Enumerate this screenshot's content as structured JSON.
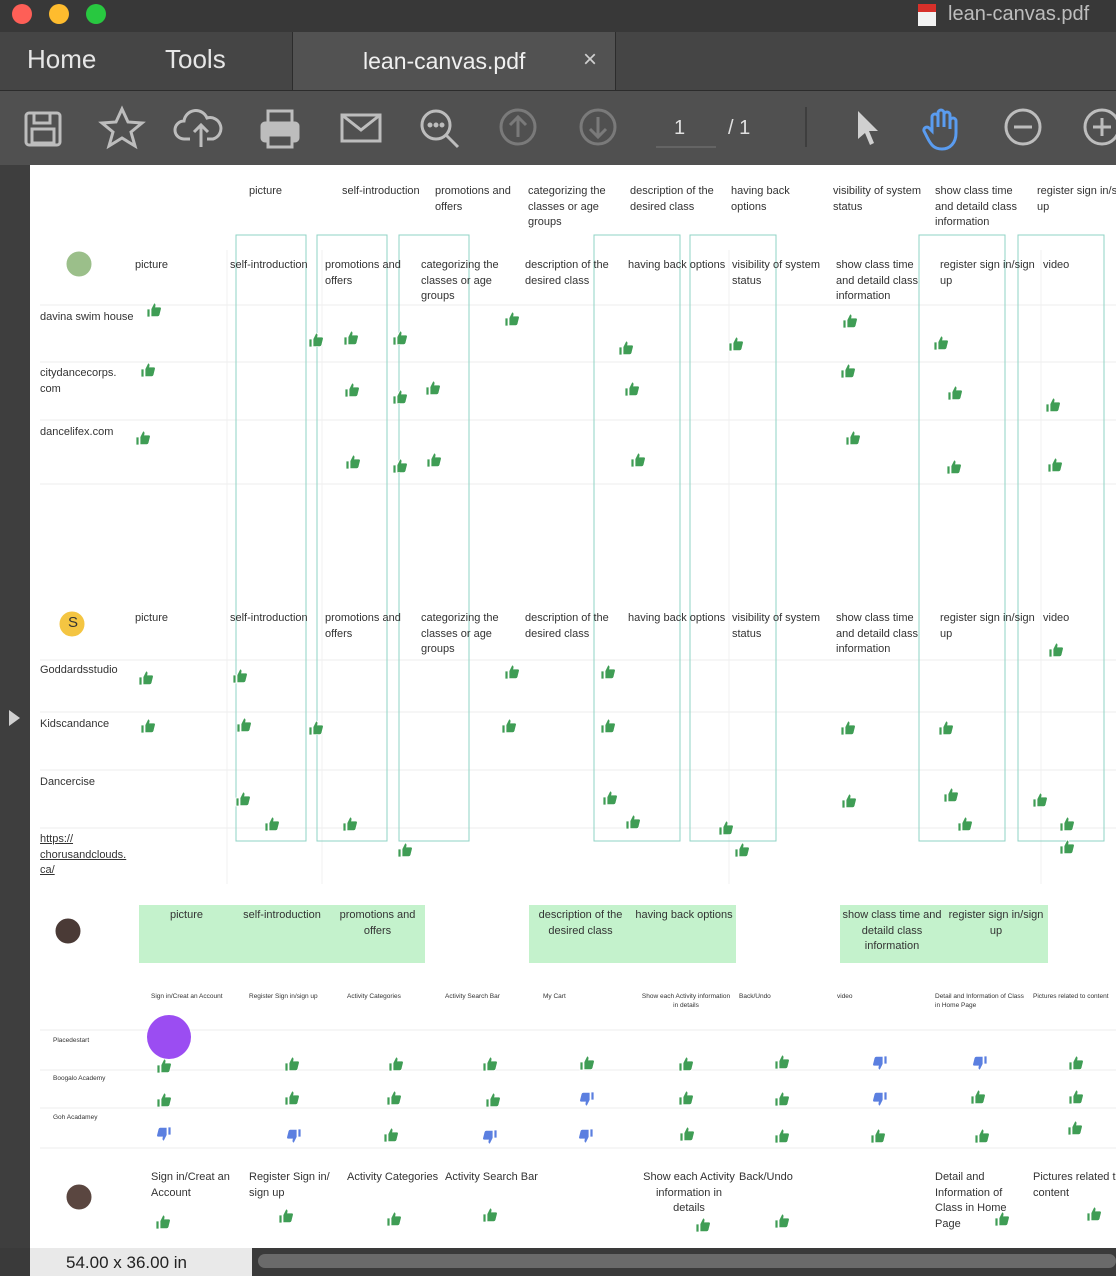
{
  "window": {
    "file_name": "lean-canvas.pdf"
  },
  "tabs": {
    "home": "Home",
    "tools": "Tools",
    "document": "lean-canvas.pdf",
    "close": "×"
  },
  "toolbar": {
    "page": "1",
    "total": "/ 1"
  },
  "canvas": {
    "top_header": [
      "picture",
      "self-introduction",
      "promotions and offers",
      "categorizing the classes or age groups",
      "description of the desired class",
      "having back options",
      "visibility of system status",
      "show class time and detaild class information",
      "register sign in/sign up"
    ],
    "section1": {
      "columns": [
        "picture",
        "self-introduction",
        "promotions and offers",
        "categorizing the classes or age groups",
        "description of the desired class",
        "having back options",
        "visibility of system status",
        "show class time and detaild class information",
        "register sign in/sign up",
        "video"
      ],
      "rows": [
        "davina swim house",
        "citydancecorps. com",
        "dancelifex.com"
      ]
    },
    "section2": {
      "avatar": "S",
      "columns": [
        "picture",
        "self-introduction",
        "promotions and offers",
        "categorizing the classes or age groups",
        "description of the desired class",
        "having back options",
        "visibility of system status",
        "show class time and detaild class information",
        "register sign in/sign up",
        "video"
      ],
      "rows": [
        "Goddardsstudio",
        "Kidscandance",
        "Dancercise",
        "https:// chorusandclouds. ca/"
      ]
    },
    "section3": {
      "groups": [
        [
          "picture",
          "self-introduction",
          "promotions and offers"
        ],
        [
          "description of the desired class",
          "having back options"
        ],
        [
          "show class time and detaild class information",
          "register sign in/sign up"
        ]
      ]
    },
    "section4": {
      "columns": [
        "Sign in/Creat an Account",
        "Register Sign in/sign up",
        "Activity Categories",
        "Activity Search Bar",
        "My Cart",
        "Show each Activity information in details",
        "Back/Undo",
        "video",
        "Detail and Information of Class in Home Page",
        "Pictures related to content"
      ],
      "rows": [
        "Placedestart",
        "Boogalo Academy",
        "Goh Acadamey"
      ]
    },
    "section5": {
      "columns": [
        "Sign in/Creat an Account",
        "Register Sign in/ sign up",
        "Activity Categories",
        "Activity Search Bar",
        "Show each Activity information in details",
        "Back/Undo",
        "Detail and Information of Class in Home Page",
        "Pictures related to content"
      ]
    }
  },
  "status": {
    "size": "54.00 x 36.00 in"
  }
}
